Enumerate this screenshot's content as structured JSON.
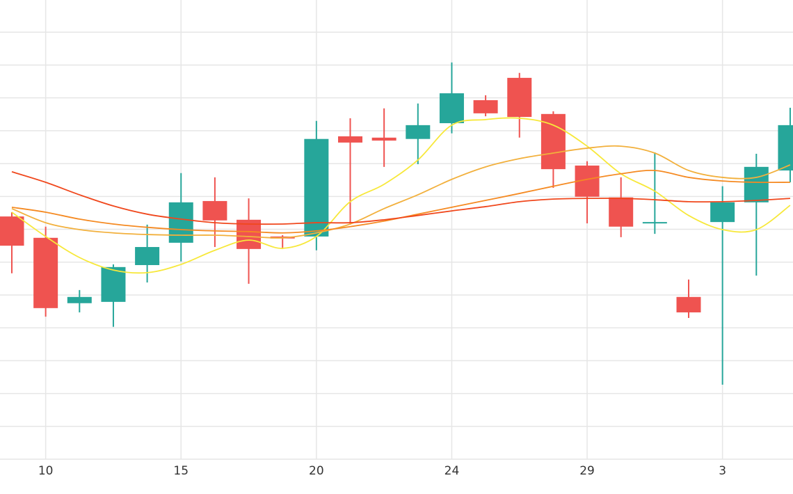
{
  "chart_data": {
    "type": "candlestick",
    "categories": [
      null,
      "10",
      null,
      null,
      null,
      "15",
      null,
      null,
      null,
      "20",
      null,
      null,
      null,
      "24",
      null,
      null,
      null,
      "29",
      null,
      null,
      null,
      "3",
      null,
      null
    ],
    "open": [
      7.39,
      6.74,
      4.75,
      4.79,
      5.91,
      6.59,
      7.86,
      7.29,
      6.78,
      6.78,
      9.83,
      9.79,
      9.75,
      10.23,
      10.93,
      11.61,
      10.51,
      8.94,
      7.97,
      7.18,
      4.94,
      7.22,
      7.82,
      8.79
    ],
    "high": [
      7.52,
      7.08,
      5.15,
      5.93,
      7.14,
      8.71,
      8.58,
      7.94,
      6.82,
      10.3,
      10.38,
      10.68,
      10.83,
      12.08,
      11.08,
      11.76,
      10.59,
      9.07,
      8.58,
      9.34,
      5.47,
      8.31,
      9.3,
      10.7
    ],
    "low": [
      5.66,
      4.34,
      4.47,
      4.03,
      5.38,
      6.02,
      6.46,
      5.34,
      6.4,
      6.36,
      7.14,
      8.9,
      8.98,
      9.92,
      10.44,
      9.79,
      8.26,
      7.18,
      6.76,
      6.86,
      4.3,
      2.27,
      5.59,
      8.43
    ],
    "close": [
      6.5,
      4.6,
      4.94,
      5.85,
      6.46,
      7.82,
      7.27,
      6.4,
      6.72,
      9.75,
      9.64,
      9.7,
      10.17,
      11.14,
      10.53,
      10.42,
      8.83,
      7.99,
      7.08,
      7.22,
      4.47,
      7.82,
      8.9,
      10.17
    ],
    "up_color": "#26a69a",
    "down_color": "#ef5350",
    "lines": [
      {
        "color": "#f7e83a",
        "values": [
          7.52,
          6.78,
          6.14,
          5.76,
          5.68,
          5.93,
          6.36,
          6.67,
          6.42,
          6.78,
          7.84,
          8.37,
          9.11,
          10.17,
          10.34,
          10.38,
          10.17,
          9.53,
          8.69,
          8.16,
          7.42,
          6.99,
          6.99,
          7.73
        ]
      },
      {
        "color": "#f2b03c",
        "values": [
          7.63,
          7.2,
          6.99,
          6.89,
          6.84,
          6.82,
          6.82,
          6.78,
          6.74,
          6.89,
          7.16,
          7.63,
          8.05,
          8.52,
          8.9,
          9.15,
          9.32,
          9.47,
          9.53,
          9.32,
          8.79,
          8.58,
          8.58,
          8.96
        ]
      },
      {
        "color": "#f58a22",
        "values": [
          7.67,
          7.52,
          7.31,
          7.16,
          7.06,
          6.99,
          6.95,
          6.93,
          6.89,
          6.95,
          7.08,
          7.25,
          7.46,
          7.67,
          7.88,
          8.09,
          8.31,
          8.52,
          8.69,
          8.79,
          8.58,
          8.47,
          8.43,
          8.43
        ]
      },
      {
        "color": "#f0471c",
        "values": [
          8.75,
          8.43,
          8.05,
          7.71,
          7.46,
          7.31,
          7.2,
          7.16,
          7.16,
          7.2,
          7.2,
          7.29,
          7.42,
          7.56,
          7.69,
          7.84,
          7.92,
          7.94,
          7.94,
          7.9,
          7.84,
          7.84,
          7.88,
          7.94
        ]
      }
    ],
    "ylim": [
      0,
      13.98
    ],
    "yticks": [
      0,
      1,
      2,
      3,
      4,
      5,
      6,
      7,
      8,
      9,
      10,
      11,
      12,
      13
    ],
    "grid": true
  }
}
